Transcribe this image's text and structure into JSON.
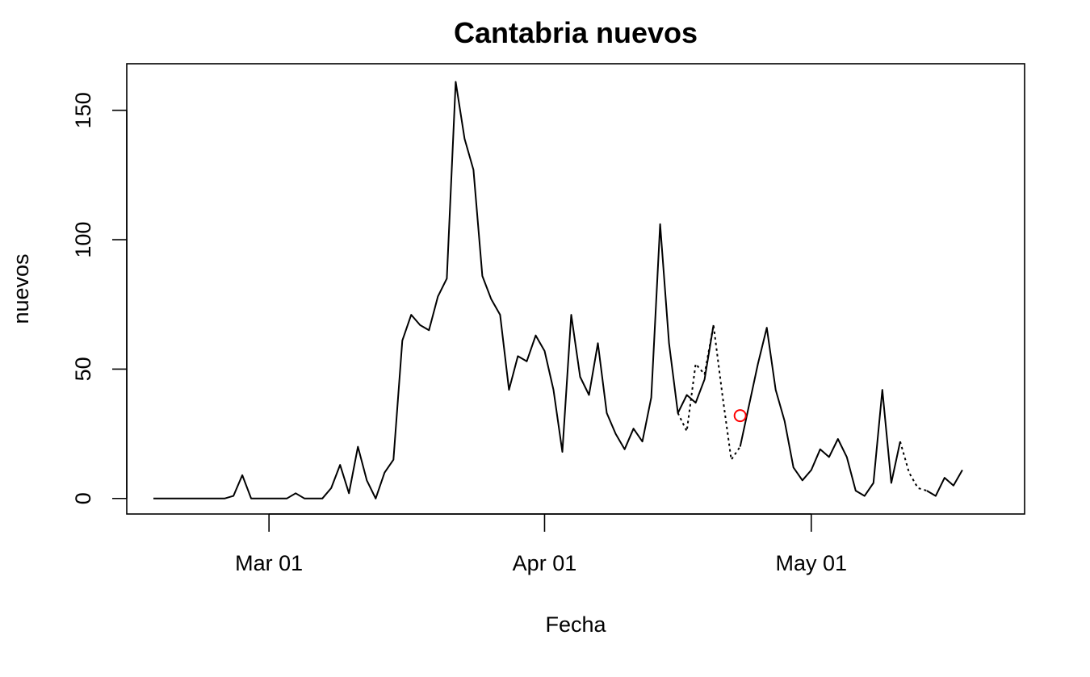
{
  "chart_data": {
    "type": "line",
    "title": "Cantabria nuevos",
    "xlabel": "Fecha",
    "ylabel": "nuevos",
    "x_start_date": "2020-02-17",
    "x_tick_labels": [
      {
        "date": "2020-03-01",
        "label": "Mar 01"
      },
      {
        "date": "2020-04-01",
        "label": "Apr 01"
      },
      {
        "date": "2020-05-01",
        "label": "May 01"
      }
    ],
    "y_ticks": [
      0,
      50,
      100,
      150
    ],
    "xlim": [
      "2020-02-14",
      "2020-05-25"
    ],
    "ylim": [
      -6,
      168
    ],
    "series": [
      {
        "style": "solid",
        "color": "#000000",
        "values": [
          0,
          0,
          0,
          0,
          0,
          0,
          0,
          0,
          0,
          1,
          9,
          0,
          0,
          0,
          0,
          0,
          2,
          0,
          0,
          0,
          4,
          13,
          2,
          20,
          7,
          0,
          10,
          15,
          61,
          71,
          67,
          65,
          78,
          85,
          161,
          139,
          127,
          86,
          77,
          71,
          42,
          55,
          53,
          63,
          57,
          42,
          18,
          71,
          47,
          40,
          60,
          33,
          25,
          19,
          27,
          22,
          39,
          106,
          60,
          33,
          40,
          37,
          46,
          67,
          null,
          null,
          20,
          36,
          52,
          66,
          42,
          30,
          12,
          7,
          11,
          19,
          16,
          23,
          16,
          3,
          1,
          6,
          42,
          6,
          22,
          null,
          null,
          3,
          1,
          8,
          5,
          11
        ]
      },
      {
        "style": "dotted",
        "color": "#000000",
        "values": [
          null,
          null,
          null,
          null,
          null,
          null,
          null,
          null,
          null,
          null,
          null,
          null,
          null,
          null,
          null,
          null,
          null,
          null,
          null,
          null,
          null,
          null,
          null,
          null,
          null,
          null,
          null,
          null,
          null,
          null,
          null,
          null,
          null,
          null,
          null,
          null,
          null,
          null,
          null,
          null,
          null,
          null,
          null,
          null,
          null,
          null,
          null,
          null,
          null,
          null,
          null,
          null,
          null,
          null,
          null,
          null,
          null,
          null,
          null,
          33,
          26,
          52,
          48,
          67,
          40,
          15,
          20,
          null,
          null,
          null,
          null,
          null,
          null,
          null,
          null,
          null,
          null,
          null,
          null,
          null,
          null,
          null,
          null,
          null,
          22,
          10,
          4,
          3,
          null,
          null,
          null,
          null
        ]
      }
    ],
    "highlight_points": [
      {
        "date": "2020-04-23",
        "value": 32,
        "color": "#ff0000",
        "shape": "open-circle"
      }
    ]
  }
}
